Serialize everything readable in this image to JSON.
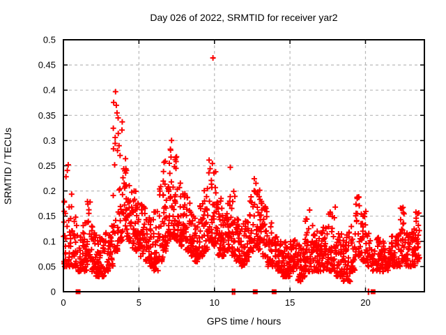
{
  "window": {
    "background": "#ffffff"
  },
  "chart_data": {
    "type": "scatter",
    "title": "Day 026 of 2022, SRMTID for receiver yar2",
    "xlabel": "GPS time / hours",
    "ylabel": "SRMTID / TECUs",
    "x_range": [
      0,
      23.9
    ],
    "y_range": [
      0,
      0.5
    ],
    "x_ticks": [
      0,
      5,
      10,
      15,
      20
    ],
    "x_tick_labels": [
      "0",
      "5",
      "10",
      "15",
      "20"
    ],
    "y_ticks": [
      0,
      0.05,
      0.1,
      0.15,
      0.2,
      0.25,
      0.3,
      0.35,
      0.4,
      0.45,
      0.5
    ],
    "y_tick_labels": [
      "0",
      "0.05",
      "0.1",
      "0.15",
      "0.2",
      "0.25",
      "0.3",
      "0.35",
      "0.4",
      "0.45",
      "0.5"
    ],
    "grid": true,
    "legend": "none",
    "marker": "plus",
    "marker_color": "#ff0000",
    "marker_size": 8,
    "marker_stroke": 2,
    "grid_color": "#b8b8b8",
    "border_color": "#000000",
    "seed": 1337,
    "outliers": [
      [
        9.9,
        0.464
      ],
      [
        3.45,
        0.397
      ],
      [
        3.5,
        0.37
      ],
      [
        3.55,
        0.355
      ],
      [
        3.62,
        0.345
      ],
      [
        0.32,
        0.252
      ],
      [
        11.05,
        0.247
      ],
      [
        16.3,
        0.162
      ],
      [
        18.0,
        0.168
      ],
      [
        19.45,
        0.185
      ],
      [
        22.4,
        0.165
      ],
      [
        23.45,
        0.155
      ]
    ],
    "baseline_squares": [
      0.97,
      12.7,
      13.95,
      20.5
    ],
    "baseline_bars": [
      11.2,
      11.33,
      20.2
    ],
    "density_bins": [
      [
        0.0,
        0.3,
        26,
        0.05,
        0.26,
        2.2
      ],
      [
        0.3,
        0.6,
        24,
        0.05,
        0.22,
        2.0
      ],
      [
        0.6,
        0.9,
        22,
        0.05,
        0.17,
        1.8
      ],
      [
        0.9,
        1.2,
        22,
        0.04,
        0.13,
        1.6
      ],
      [
        1.2,
        1.5,
        24,
        0.04,
        0.14,
        1.6
      ],
      [
        1.5,
        1.8,
        26,
        0.04,
        0.18,
        1.8
      ],
      [
        1.8,
        2.1,
        26,
        0.04,
        0.13,
        1.5
      ],
      [
        2.1,
        2.4,
        26,
        0.03,
        0.12,
        1.5
      ],
      [
        2.4,
        2.7,
        24,
        0.03,
        0.11,
        1.5
      ],
      [
        2.7,
        3.0,
        24,
        0.04,
        0.12,
        1.5
      ],
      [
        3.0,
        3.3,
        22,
        0.05,
        0.14,
        1.5
      ],
      [
        3.3,
        3.6,
        24,
        0.08,
        0.4,
        2.6
      ],
      [
        3.6,
        3.9,
        28,
        0.1,
        0.36,
        2.2
      ],
      [
        3.9,
        4.2,
        24,
        0.12,
        0.28,
        1.8
      ],
      [
        4.2,
        4.5,
        22,
        0.1,
        0.22,
        1.6
      ],
      [
        4.5,
        4.8,
        24,
        0.08,
        0.2,
        1.6
      ],
      [
        4.8,
        5.1,
        24,
        0.08,
        0.18,
        1.5
      ],
      [
        5.1,
        5.4,
        26,
        0.07,
        0.18,
        1.5
      ],
      [
        5.4,
        5.7,
        24,
        0.06,
        0.17,
        1.5
      ],
      [
        5.7,
        6.0,
        24,
        0.05,
        0.15,
        1.5
      ],
      [
        6.0,
        6.3,
        24,
        0.04,
        0.16,
        1.5
      ],
      [
        6.3,
        6.6,
        24,
        0.06,
        0.21,
        1.7
      ],
      [
        6.6,
        6.9,
        26,
        0.08,
        0.26,
        1.8
      ],
      [
        6.9,
        7.2,
        28,
        0.1,
        0.31,
        1.9
      ],
      [
        7.2,
        7.5,
        26,
        0.1,
        0.27,
        1.8
      ],
      [
        7.5,
        7.8,
        26,
        0.1,
        0.22,
        1.6
      ],
      [
        7.8,
        8.1,
        26,
        0.09,
        0.2,
        1.5
      ],
      [
        8.1,
        8.4,
        24,
        0.08,
        0.19,
        1.5
      ],
      [
        8.4,
        8.7,
        24,
        0.07,
        0.17,
        1.5
      ],
      [
        8.7,
        9.0,
        24,
        0.06,
        0.15,
        1.5
      ],
      [
        9.0,
        9.3,
        24,
        0.07,
        0.18,
        1.5
      ],
      [
        9.3,
        9.6,
        26,
        0.08,
        0.23,
        1.7
      ],
      [
        9.6,
        9.9,
        28,
        0.1,
        0.27,
        1.8
      ],
      [
        9.9,
        10.2,
        26,
        0.09,
        0.24,
        1.7
      ],
      [
        10.2,
        10.5,
        24,
        0.07,
        0.19,
        1.6
      ],
      [
        10.5,
        10.8,
        24,
        0.07,
        0.17,
        1.5
      ],
      [
        10.8,
        11.1,
        26,
        0.08,
        0.21,
        1.6
      ],
      [
        11.1,
        11.4,
        24,
        0.07,
        0.2,
        1.6
      ],
      [
        11.4,
        11.7,
        24,
        0.06,
        0.17,
        1.5
      ],
      [
        11.7,
        12.0,
        24,
        0.05,
        0.14,
        1.5
      ],
      [
        12.0,
        12.3,
        24,
        0.06,
        0.15,
        1.5
      ],
      [
        12.3,
        12.6,
        24,
        0.08,
        0.19,
        1.6
      ],
      [
        12.6,
        12.9,
        26,
        0.09,
        0.23,
        1.7
      ],
      [
        12.9,
        13.2,
        24,
        0.08,
        0.21,
        1.6
      ],
      [
        13.2,
        13.5,
        24,
        0.07,
        0.17,
        1.5
      ],
      [
        13.5,
        13.8,
        24,
        0.05,
        0.14,
        1.4
      ],
      [
        13.8,
        14.1,
        24,
        0.05,
        0.12,
        1.4
      ],
      [
        14.1,
        14.5,
        32,
        0.04,
        0.11,
        1.4
      ],
      [
        14.5,
        15.0,
        40,
        0.03,
        0.1,
        1.4
      ],
      [
        15.0,
        15.5,
        40,
        0.04,
        0.11,
        1.4
      ],
      [
        15.5,
        16.0,
        40,
        0.02,
        0.1,
        1.4
      ],
      [
        16.0,
        16.5,
        40,
        0.04,
        0.15,
        1.6
      ],
      [
        16.5,
        17.0,
        40,
        0.04,
        0.12,
        1.5
      ],
      [
        17.0,
        17.5,
        40,
        0.04,
        0.13,
        1.5
      ],
      [
        17.5,
        18.0,
        40,
        0.04,
        0.16,
        1.6
      ],
      [
        18.0,
        18.5,
        40,
        0.03,
        0.12,
        1.5
      ],
      [
        18.5,
        19.0,
        40,
        0.02,
        0.12,
        1.5
      ],
      [
        19.0,
        19.3,
        24,
        0.04,
        0.13,
        1.5
      ],
      [
        19.3,
        19.7,
        28,
        0.07,
        0.19,
        1.6
      ],
      [
        19.7,
        20.1,
        26,
        0.06,
        0.16,
        1.5
      ],
      [
        20.1,
        20.4,
        16,
        0.05,
        0.13,
        1.5
      ],
      [
        20.4,
        20.7,
        14,
        0.04,
        0.1,
        1.4
      ],
      [
        20.7,
        21.0,
        28,
        0.04,
        0.11,
        1.4
      ],
      [
        21.0,
        21.5,
        38,
        0.04,
        0.1,
        1.4
      ],
      [
        21.5,
        22.0,
        38,
        0.05,
        0.11,
        1.4
      ],
      [
        22.0,
        22.3,
        22,
        0.05,
        0.12,
        1.4
      ],
      [
        22.3,
        22.6,
        26,
        0.06,
        0.17,
        1.7
      ],
      [
        22.6,
        23.0,
        28,
        0.05,
        0.12,
        1.4
      ],
      [
        23.0,
        23.3,
        24,
        0.05,
        0.13,
        1.5
      ],
      [
        23.3,
        23.6,
        24,
        0.06,
        0.16,
        1.6
      ]
    ]
  }
}
